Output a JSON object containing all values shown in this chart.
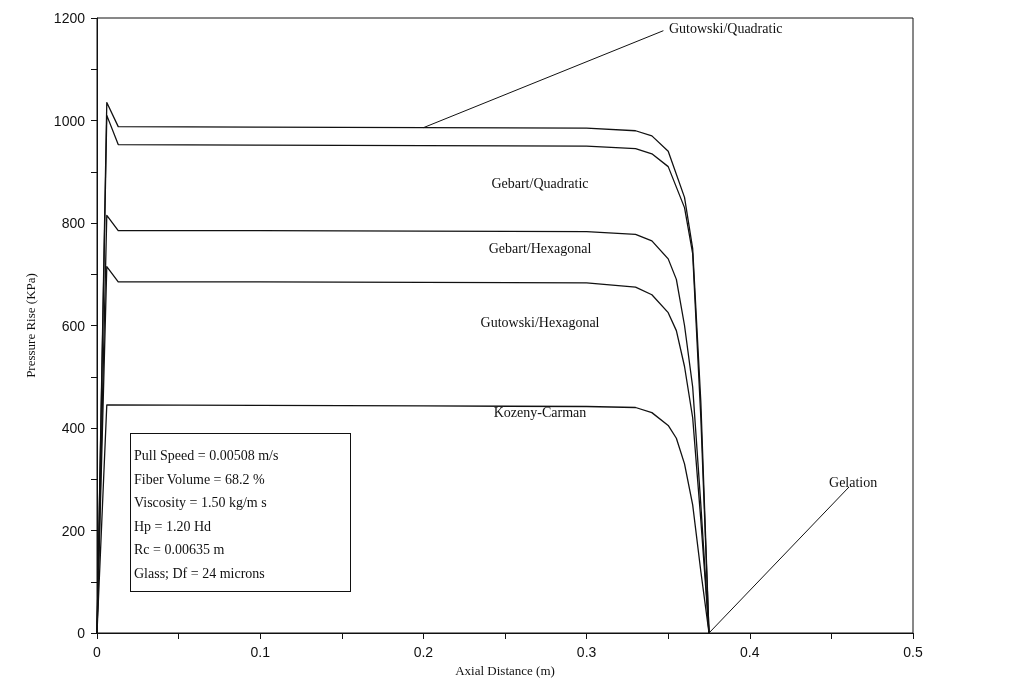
{
  "chart_data": {
    "type": "line",
    "xlabel": "Axial Distance (m)",
    "ylabel": "Pressure Rise (KPa)",
    "xlim": [
      0,
      0.5
    ],
    "ylim": [
      0,
      1200
    ],
    "xticks": [
      0,
      {
        "value": 0.05,
        "label": null
      },
      0.1,
      {
        "value": 0.15,
        "label": null
      },
      0.2,
      {
        "value": 0.25,
        "label": null
      },
      0.3,
      {
        "value": 0.35,
        "label": null
      },
      0.4,
      {
        "value": 0.45,
        "label": null
      },
      0.5
    ],
    "yticks": [
      0,
      {
        "value": 100,
        "label": null
      },
      200,
      {
        "value": 300,
        "label": null
      },
      400,
      {
        "value": 500,
        "label": null
      },
      600,
      {
        "value": 700,
        "label": null
      },
      800,
      {
        "value": 900,
        "label": null
      },
      1000,
      {
        "value": 1100,
        "label": null
      },
      1200
    ],
    "grid": false,
    "legend": false,
    "marker": "none",
    "line_style": "solid",
    "series": [
      {
        "name": "Gutowski/Quadratic",
        "color": "#111111",
        "x": [
          0,
          0.006,
          0.013,
          0.1,
          0.2,
          0.3,
          0.33,
          0.34,
          0.35,
          0.36,
          0.365,
          0.37,
          0.375
        ],
        "values": [
          0,
          1035,
          988,
          987,
          986,
          985,
          980,
          970,
          940,
          850,
          750,
          450,
          0
        ]
      },
      {
        "name": "Gebart/Quadratic",
        "color": "#111111",
        "x": [
          0,
          0.006,
          0.013,
          0.1,
          0.2,
          0.3,
          0.33,
          0.34,
          0.35,
          0.36,
          0.365,
          0.37,
          0.375
        ],
        "values": [
          0,
          1010,
          953,
          952,
          951,
          950,
          945,
          935,
          910,
          830,
          740,
          420,
          0
        ]
      },
      {
        "name": "Gebart/Hexagonal",
        "color": "#111111",
        "x": [
          0,
          0.006,
          0.013,
          0.1,
          0.2,
          0.3,
          0.33,
          0.34,
          0.35,
          0.355,
          0.36,
          0.365,
          0.37,
          0.375
        ],
        "values": [
          0,
          815,
          785,
          785,
          784,
          783,
          778,
          765,
          730,
          690,
          600,
          480,
          250,
          0
        ]
      },
      {
        "name": "Gutowski/Hexagonal",
        "color": "#111111",
        "x": [
          0,
          0.006,
          0.013,
          0.1,
          0.2,
          0.3,
          0.33,
          0.34,
          0.35,
          0.355,
          0.36,
          0.365,
          0.37,
          0.375
        ],
        "values": [
          0,
          715,
          685,
          685,
          684,
          683,
          675,
          660,
          625,
          590,
          520,
          420,
          220,
          0
        ]
      },
      {
        "name": "Kozeny-Carman",
        "color": "#111111",
        "x": [
          0,
          0.006,
          0.1,
          0.2,
          0.3,
          0.33,
          0.34,
          0.35,
          0.355,
          0.36,
          0.365,
          0.37,
          0.375
        ],
        "values": [
          0,
          445,
          444,
          443,
          442,
          440,
          430,
          405,
          380,
          330,
          250,
          120,
          0
        ]
      }
    ],
    "annotations": [
      "Pull Speed = 0.00508 m/s",
      "Fiber Volume = 68.2 %",
      "Viscosity = 1.50 kg/m s",
      "Hp = 1.20 Hd",
      "Rc = 0.00635 m",
      "Glass; Df = 24 microns",
      {
        "text": "Gelation",
        "x": 0.375,
        "y": 0
      }
    ]
  }
}
